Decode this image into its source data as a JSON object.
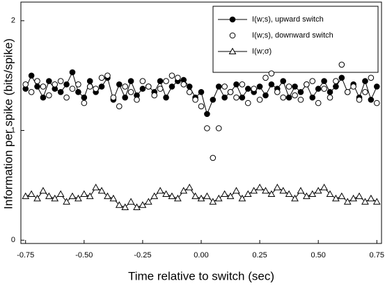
{
  "chart_data": {
    "type": "scatter-line",
    "xlabel": "Time relative to switch (sec)",
    "ylabel": "Information per spike (bits/spike)",
    "x": [
      -0.75,
      -0.725,
      -0.7,
      -0.675,
      -0.65,
      -0.625,
      -0.6,
      -0.575,
      -0.55,
      -0.525,
      -0.5,
      -0.475,
      -0.45,
      -0.425,
      -0.4,
      -0.375,
      -0.35,
      -0.325,
      -0.3,
      -0.275,
      -0.25,
      -0.225,
      -0.2,
      -0.175,
      -0.15,
      -0.125,
      -0.1,
      -0.075,
      -0.05,
      -0.025,
      0,
      0.025,
      0.05,
      0.075,
      0.1,
      0.125,
      0.15,
      0.175,
      0.2,
      0.225,
      0.25,
      0.275,
      0.3,
      0.325,
      0.35,
      0.375,
      0.4,
      0.425,
      0.45,
      0.475,
      0.5,
      0.525,
      0.55,
      0.575,
      0.6,
      0.625,
      0.65,
      0.675,
      0.7,
      0.725,
      0.75
    ],
    "series": [
      {
        "name": "I(w;s), upward switch",
        "color": "#000000",
        "marker": "filled-circle",
        "line": true,
        "values": [
          1.38,
          1.5,
          1.4,
          1.3,
          1.45,
          1.38,
          1.35,
          1.42,
          1.53,
          1.35,
          1.3,
          1.45,
          1.35,
          1.4,
          1.48,
          1.28,
          1.42,
          1.3,
          1.45,
          1.32,
          1.38,
          1.4,
          1.35,
          1.45,
          1.3,
          1.4,
          1.45,
          1.46,
          1.4,
          1.3,
          1.35,
          1.15,
          1.28,
          1.4,
          1.3,
          1.35,
          1.42,
          1.3,
          1.38,
          1.35,
          1.4,
          1.32,
          1.42,
          1.38,
          1.45,
          1.3,
          1.4,
          1.35,
          1.42,
          1.3,
          1.38,
          1.45,
          1.35,
          1.4,
          1.48,
          1.35,
          1.42,
          1.3,
          1.45,
          1.28,
          1.4
        ]
      },
      {
        "name": "I(w;s), downward switch",
        "color": "#000000",
        "marker": "open-circle",
        "line": false,
        "values": [
          1.42,
          1.35,
          1.45,
          1.4,
          1.32,
          1.42,
          1.45,
          1.3,
          1.38,
          1.42,
          1.25,
          1.4,
          1.38,
          1.48,
          1.5,
          1.3,
          1.22,
          1.4,
          1.35,
          1.28,
          1.45,
          1.4,
          1.32,
          1.38,
          1.45,
          1.5,
          1.48,
          1.42,
          1.35,
          1.28,
          1.22,
          1.02,
          0.75,
          1.02,
          1.4,
          1.35,
          1.3,
          1.42,
          1.25,
          1.38,
          1.28,
          1.48,
          1.52,
          1.35,
          1.3,
          1.4,
          1.32,
          1.28,
          1.42,
          1.45,
          1.25,
          1.38,
          1.3,
          1.45,
          1.6,
          1.35,
          1.4,
          1.28,
          1.35,
          1.48,
          1.25
        ]
      },
      {
        "name": "I(w;σ)",
        "color": "#000000",
        "marker": "open-triangle",
        "line": true,
        "values": [
          0.4,
          0.42,
          0.38,
          0.45,
          0.4,
          0.38,
          0.42,
          0.35,
          0.4,
          0.38,
          0.42,
          0.4,
          0.48,
          0.45,
          0.4,
          0.38,
          0.32,
          0.3,
          0.35,
          0.3,
          0.32,
          0.35,
          0.4,
          0.45,
          0.42,
          0.4,
          0.38,
          0.45,
          0.48,
          0.4,
          0.38,
          0.4,
          0.35,
          0.38,
          0.42,
          0.4,
          0.45,
          0.38,
          0.42,
          0.45,
          0.48,
          0.45,
          0.42,
          0.48,
          0.45,
          0.42,
          0.38,
          0.45,
          0.4,
          0.42,
          0.45,
          0.48,
          0.42,
          0.38,
          0.4,
          0.35,
          0.38,
          0.4,
          0.35,
          0.38,
          0.35
        ]
      }
    ],
    "xlim": [
      -0.77,
      0.77
    ],
    "xticks": [
      -0.75,
      {
        "value": -0.5,
        "label": "-0.50"
      },
      -0.25,
      {
        "value": 0,
        "label": "0.00"
      },
      0.25,
      {
        "value": 0.5,
        "label": "0.50"
      },
      0.75
    ],
    "ylim": [
      -0.03,
      2.17
    ],
    "yticks": [
      0,
      1,
      2
    ],
    "legend": "upper right"
  }
}
